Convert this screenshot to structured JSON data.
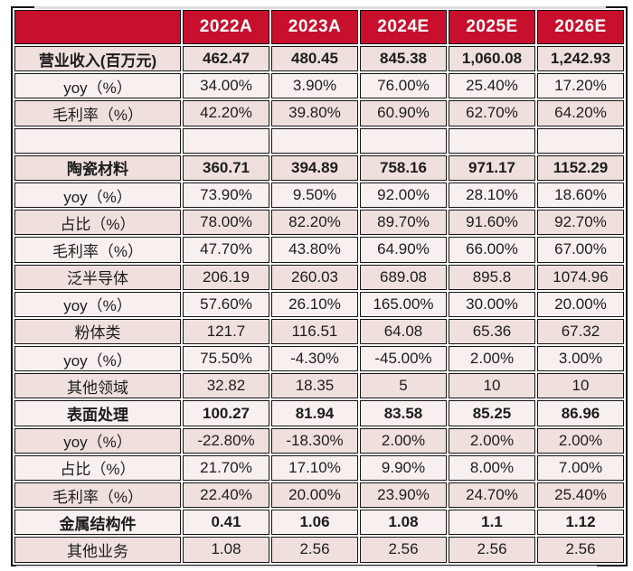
{
  "colors": {
    "header_bg": "#c8102e",
    "header_text": "#ffffff",
    "row_dark": "#efe0de",
    "row_light": "#f8f0ee",
    "border": "#141414"
  },
  "chart_data": {
    "type": "table",
    "title": "",
    "columns": [
      "",
      "2022A",
      "2023A",
      "2024E",
      "2025E",
      "2026E"
    ],
    "rows": [
      {
        "label": "营业收入(百万元)",
        "bold": true,
        "shade": "dark",
        "values": [
          "462.47",
          "480.45",
          "845.38",
          "1,060.08",
          "1,242.93"
        ]
      },
      {
        "label": "yoy（%）",
        "bold": false,
        "shade": "light",
        "values": [
          "34.00%",
          "3.90%",
          "76.00%",
          "25.40%",
          "17.20%"
        ]
      },
      {
        "label": "毛利率（%）",
        "bold": false,
        "shade": "dark",
        "values": [
          "42.20%",
          "39.80%",
          "60.90%",
          "62.70%",
          "64.20%"
        ]
      },
      {
        "label": "",
        "bold": false,
        "shade": "light",
        "values": [
          "",
          "",
          "",
          "",
          ""
        ]
      },
      {
        "label": "陶瓷材料",
        "bold": true,
        "shade": "dark",
        "values": [
          "360.71",
          "394.89",
          "758.16",
          "971.17",
          "1152.29"
        ]
      },
      {
        "label": "yoy（%）",
        "bold": false,
        "shade": "light",
        "values": [
          "73.90%",
          "9.50%",
          "92.00%",
          "28.10%",
          "18.60%"
        ]
      },
      {
        "label": "占比（%）",
        "bold": false,
        "shade": "dark",
        "values": [
          "78.00%",
          "82.20%",
          "89.70%",
          "91.60%",
          "92.70%"
        ]
      },
      {
        "label": "毛利率（%）",
        "bold": false,
        "shade": "light",
        "values": [
          "47.70%",
          "43.80%",
          "64.90%",
          "66.00%",
          "67.00%"
        ]
      },
      {
        "label": "泛半导体",
        "bold": false,
        "shade": "dark",
        "values": [
          "206.19",
          "260.03",
          "689.08",
          "895.8",
          "1074.96"
        ]
      },
      {
        "label": "yoy（%）",
        "bold": false,
        "shade": "light",
        "values": [
          "57.60%",
          "26.10%",
          "165.00%",
          "30.00%",
          "20.00%"
        ]
      },
      {
        "label": "粉体类",
        "bold": false,
        "shade": "dark",
        "values": [
          "121.7",
          "116.51",
          "64.08",
          "65.36",
          "67.32"
        ]
      },
      {
        "label": "yoy（%）",
        "bold": false,
        "shade": "light",
        "values": [
          "75.50%",
          "-4.30%",
          "-45.00%",
          "2.00%",
          "3.00%"
        ]
      },
      {
        "label": "其他领域",
        "bold": false,
        "shade": "dark",
        "values": [
          "32.82",
          "18.35",
          "5",
          "10",
          "10"
        ]
      },
      {
        "label": "表面处理",
        "bold": true,
        "shade": "light",
        "values": [
          "100.27",
          "81.94",
          "83.58",
          "85.25",
          "86.96"
        ]
      },
      {
        "label": "yoy（%）",
        "bold": false,
        "shade": "dark",
        "values": [
          "-22.80%",
          "-18.30%",
          "2.00%",
          "2.00%",
          "2.00%"
        ]
      },
      {
        "label": "占比（%）",
        "bold": false,
        "shade": "light",
        "values": [
          "21.70%",
          "17.10%",
          "9.90%",
          "8.00%",
          "7.00%"
        ]
      },
      {
        "label": "毛利率（%）",
        "bold": false,
        "shade": "dark",
        "values": [
          "22.40%",
          "20.00%",
          "23.90%",
          "24.70%",
          "25.40%"
        ]
      },
      {
        "label": "金属结构件",
        "bold": true,
        "shade": "light",
        "values": [
          "0.41",
          "1.06",
          "1.08",
          "1.1",
          "1.12"
        ]
      },
      {
        "label": "其他业务",
        "bold": false,
        "shade": "dark",
        "values": [
          "1.08",
          "2.56",
          "2.56",
          "2.56",
          "2.56"
        ]
      }
    ]
  }
}
